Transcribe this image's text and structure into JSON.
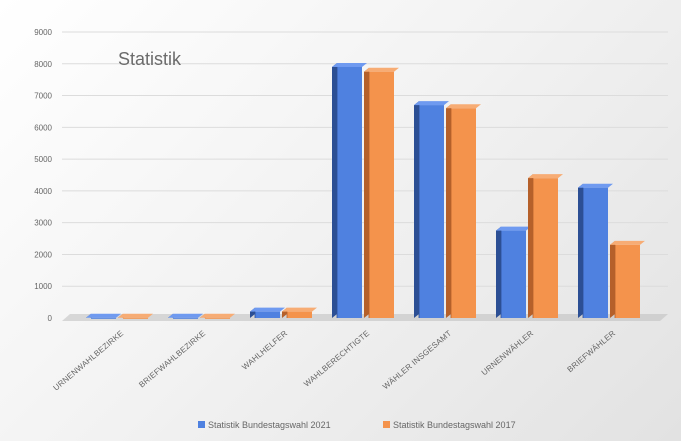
{
  "colors": {
    "series_1": "#4f81e0",
    "series_1_side": "#2c4f94",
    "series_1_top": "#6f9af0",
    "series_2": "#f4934c",
    "series_2_side": "#b5602a",
    "series_2_top": "#f7ac74",
    "grid": "#dcdcdc",
    "floor": "#bdbdbd"
  },
  "chart_data": {
    "type": "bar",
    "title": "Statistik",
    "xlabel": "",
    "ylabel": "",
    "ylim": [
      0,
      9000
    ],
    "yticks": [
      0,
      1000,
      2000,
      3000,
      4000,
      5000,
      6000,
      7000,
      8000,
      9000
    ],
    "grid": true,
    "legend_position": "bottom",
    "categories": [
      "URNENWAHLBEZIRKE",
      "BRIEFWAHLBEZIRKE",
      "WAHLHELFER",
      "WAHLBERECHTIGTE",
      "WÄHLER INSGESAMT",
      "URNENWÄHLER",
      "BRIEFWÄHLER"
    ],
    "series": [
      {
        "name": "Statistik Bundestagswahl 2021",
        "values": [
          6,
          6,
          200,
          7900,
          6700,
          2750,
          4100
        ]
      },
      {
        "name": "Statistik Bundestagswahl 2017",
        "values": [
          6,
          6,
          200,
          7750,
          6600,
          4400,
          2300
        ]
      }
    ]
  }
}
